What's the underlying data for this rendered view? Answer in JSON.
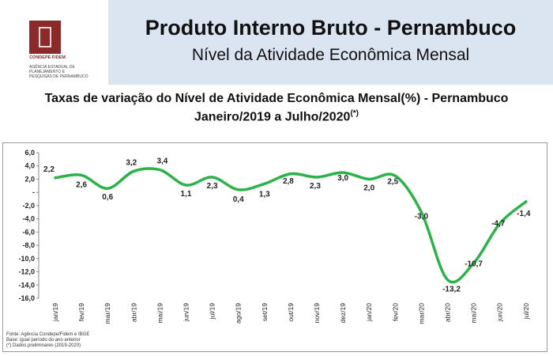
{
  "header": {
    "title": "Produto Interno Bruto - Pernambuco",
    "subtitle": "Nível da Atividade Econômica Mensal",
    "logo": {
      "name": "CONDEPE FIDEM",
      "org_line1": "AGÊNCIA ESTADUAL DE",
      "org_line2": "PLANEJAMENTO E",
      "org_line3": "PESQUISAS DE PERNAMBUCO",
      "color": "#8b2a2a"
    }
  },
  "chart_data": {
    "type": "line",
    "title_line1": "Taxas de variação do Nível de Atividade Econômica Mensal(%) - Pernambuco",
    "title_line2": "Janeiro/2019 a Julho/2020",
    "title_mark": "(*)",
    "categories": [
      "jan/19",
      "fev/19",
      "mar/19",
      "abr/19",
      "mai/19",
      "jun/19",
      "jul/19",
      "ago/19",
      "set/19",
      "out/19",
      "nov/19",
      "dez/19",
      "jan/20",
      "fev/20",
      "mar/20",
      "abr/20",
      "mai/20",
      "jun/20",
      "jul/20"
    ],
    "values": [
      2.2,
      2.6,
      0.6,
      3.2,
      3.4,
      1.1,
      2.3,
      0.4,
      1.3,
      2.8,
      2.3,
      3.0,
      2.0,
      2.5,
      -3.0,
      -13.2,
      -10.7,
      -4.7,
      -1.4
    ],
    "value_labels": [
      "2,2",
      "2,6",
      "0,6",
      "3,2",
      "3,4",
      "1,1",
      "2,3",
      "0,4",
      "1,3",
      "2,8",
      "2,3",
      "3,0",
      "2,0",
      "2,5",
      "-3,0",
      "-13,2",
      "-10,7",
      "-4,7",
      "-1,4"
    ],
    "yticks": [
      6,
      4,
      2,
      0,
      -2,
      -4,
      -6,
      -8,
      -10,
      -12,
      -14,
      -16
    ],
    "ytick_labels": [
      "6,0",
      "4,0",
      "2,0",
      "-",
      "-2,0",
      "-4,0",
      "-6,0",
      "-8,0",
      "-10,0",
      "-12,0",
      "-14,0",
      "-16,0"
    ],
    "ylim": [
      -16,
      6
    ],
    "grid": false,
    "line_color": "#2db24a"
  },
  "footnotes": {
    "source": "Fonte: Agência Condepe/Fidem e IBGE",
    "base": "Base: igual período do ano anterior",
    "preliminary": "(*) Dados preliminares (2019-2020)"
  }
}
